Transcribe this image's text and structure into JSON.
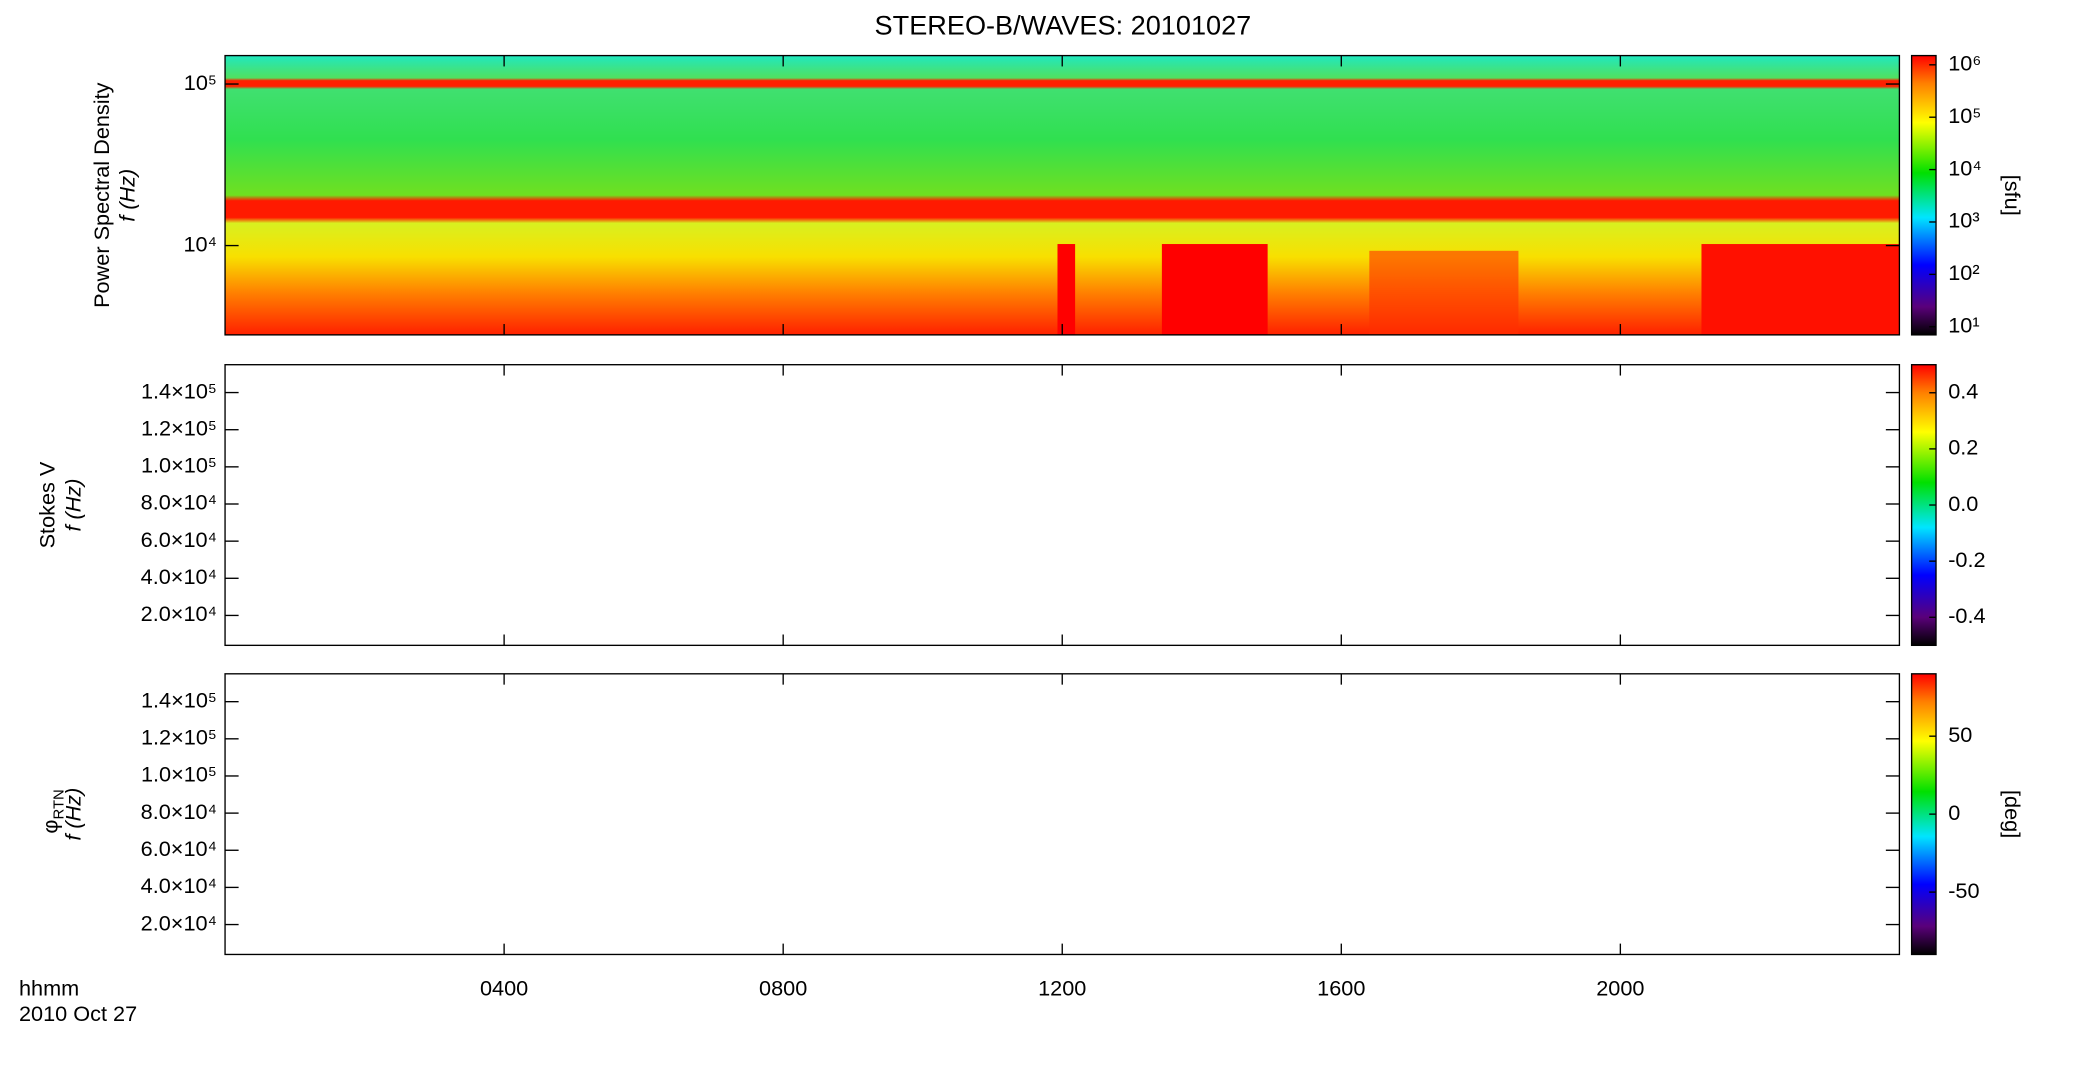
{
  "chart_data": [
    {
      "type": "heatmap",
      "title": "STEREO-B/WAVES: 20101027",
      "ylabel_title": "Power Spectral Density",
      "ylabel": "f (Hz)",
      "log_scale": true,
      "ylim": [
        2800,
        150000
      ],
      "yticks": [
        {
          "value": 10000,
          "label": "10⁴"
        },
        {
          "value": 100000,
          "label": "10⁵"
        }
      ],
      "colorbar": {
        "log": true,
        "lim": [
          7,
          1500000
        ],
        "label": "[sfu]",
        "ticks": [
          {
            "value": 10,
            "label": "10¹"
          },
          {
            "value": 100,
            "label": "10²"
          },
          {
            "value": 1000,
            "label": "10³"
          },
          {
            "value": 10000,
            "label": "10⁴"
          },
          {
            "value": 100000,
            "label": "10⁵"
          },
          {
            "value": 1000000,
            "label": "10⁶"
          }
        ]
      }
    },
    {
      "type": "heatmap",
      "ylabel_title": "Stokes V",
      "ylabel": "f (Hz)",
      "ylim": [
        3900,
        155000
      ],
      "yticks": [
        {
          "value": 20000,
          "label": "2.0×10⁴"
        },
        {
          "value": 40000,
          "label": "4.0×10⁴"
        },
        {
          "value": 60000,
          "label": "6.0×10⁴"
        },
        {
          "value": 80000,
          "label": "8.0×10⁴"
        },
        {
          "value": 100000,
          "label": "1.0×10⁵"
        },
        {
          "value": 120000,
          "label": "1.2×10⁵"
        },
        {
          "value": 140000,
          "label": "1.4×10⁵"
        }
      ],
      "colorbar": {
        "lim": [
          -0.5,
          0.5
        ],
        "ticks": [
          -0.4,
          -0.2,
          {
            "value": 0,
            "label": "0.0"
          },
          0.2,
          0.4
        ]
      }
    },
    {
      "type": "heatmap",
      "ylabel_symbol": "φ",
      "ylabel_subscript": "RTN",
      "ylabel": "f (Hz)",
      "ylim": [
        3900,
        155000
      ],
      "yticks": [
        {
          "value": 20000,
          "label": "2.0×10⁴"
        },
        {
          "value": 40000,
          "label": "4.0×10⁴"
        },
        {
          "value": 60000,
          "label": "6.0×10⁴"
        },
        {
          "value": 80000,
          "label": "8.0×10⁴"
        },
        {
          "value": 100000,
          "label": "1.0×10⁵"
        },
        {
          "value": 120000,
          "label": "1.2×10⁵"
        },
        {
          "value": 140000,
          "label": "1.4×10⁵"
        }
      ],
      "colorbar": {
        "lim": [
          -90,
          90
        ],
        "ticks": [
          -50,
          0,
          50
        ],
        "label": "[deg]"
      },
      "xlabel": "hhmm",
      "date_label": "2010 Oct 27",
      "xlim": [
        0,
        24
      ],
      "xticks": [
        {
          "value": 4,
          "label": "0400"
        },
        {
          "value": 8,
          "label": "0800"
        },
        {
          "value": 12,
          "label": "1200"
        },
        {
          "value": 16,
          "label": "1600"
        },
        {
          "value": 20,
          "label": "2000"
        }
      ]
    }
  ]
}
